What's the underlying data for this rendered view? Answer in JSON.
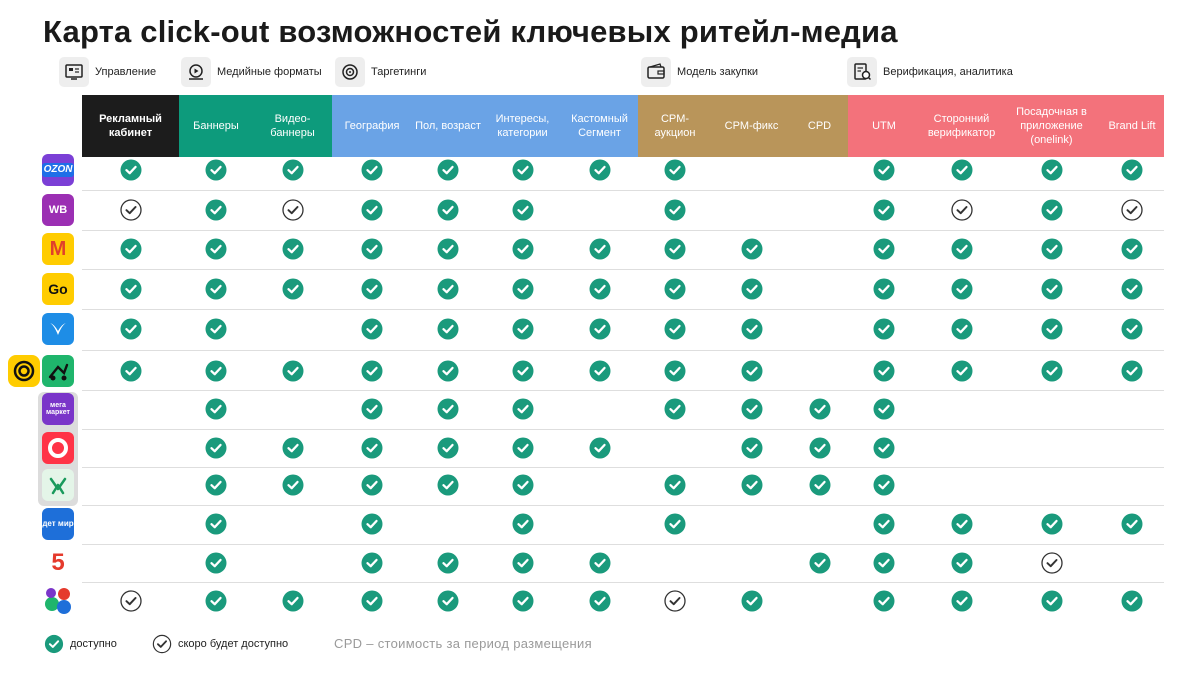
{
  "title": "Карта click-out возможностей ключевых ритейл-медиа",
  "groups": [
    {
      "label": "Управление",
      "icon": "dashboard-icon"
    },
    {
      "label": "Медийные форматы",
      "icon": "video-icon"
    },
    {
      "label": "Таргетинги",
      "icon": "target-icon"
    },
    {
      "label": "Модель закупки",
      "icon": "wallet-icon"
    },
    {
      "label": "Верификация, аналитика",
      "icon": "analytics-icon"
    }
  ],
  "colors": {
    "check": "#1a9a7c",
    "mgmt": "#1c1c1c",
    "media": "#0d9b7c",
    "targeting": "#6aa3e6",
    "purchase": "#b9955a",
    "verification": "#f3727b"
  },
  "columns": [
    {
      "label": "Рекламный кабинет",
      "group": "mgmt"
    },
    {
      "label": "Баннеры",
      "group": "media"
    },
    {
      "label": "Видео-баннеры",
      "group": "media"
    },
    {
      "label": "География",
      "group": "targeting"
    },
    {
      "label": "Пол, возраст",
      "group": "targeting"
    },
    {
      "label": "Интересы, категории",
      "group": "targeting"
    },
    {
      "label": "Кастомный Сегмент",
      "group": "targeting"
    },
    {
      "label": "CPM-аукцион",
      "group": "purchase"
    },
    {
      "label": "CPM-фикс",
      "group": "purchase"
    },
    {
      "label": "CPD",
      "group": "purchase"
    },
    {
      "label": "UTM",
      "group": "verification"
    },
    {
      "label": "Сторонний верификатор",
      "group": "verification"
    },
    {
      "label": "Посадочная в приложение (onelink)",
      "group": "verification"
    },
    {
      "label": "Brand Lift",
      "group": "verification"
    }
  ],
  "rows": [
    {
      "name": "ozon-logo",
      "text": "OZON",
      "marks": "a,a,a,a,a,a,a,a,-,-,a,a,a,a"
    },
    {
      "name": "wildberries-logo",
      "text": "WB",
      "marks": "s,a,s,a,a,a,-,a,-,-,a,s,a,s"
    },
    {
      "name": "yandex-market-logo",
      "text": "М",
      "marks": "a,a,a,a,a,a,a,a,a,-,a,a,a,a"
    },
    {
      "name": "yandex-go-logo",
      "text": "Go",
      "marks": "a,a,a,a,a,a,a,a,a,-,a,a,a,a"
    },
    {
      "name": "vkusvill-logo",
      "text": "",
      "marks": "a,a,-,a,a,a,a,a,a,-,a,a,a,a"
    },
    {
      "name": "samokat-logo",
      "text": "",
      "marks": "a,a,a,a,a,a,a,a,a,-,a,a,a,a"
    },
    {
      "name": "megamarket-logo",
      "text": "мега маркет",
      "marks": "-,a,-,a,a,a,-,a,a,a,a,-,-,-"
    },
    {
      "name": "avito-logo",
      "text": "",
      "marks": "-,a,a,a,a,a,a,-,a,a,a,-,-,-"
    },
    {
      "name": "sbermarket-logo",
      "text": "",
      "marks": "-,a,a,a,a,a,-,a,a,a,a,-,-,-"
    },
    {
      "name": "detmir-logo",
      "text": "дет мир",
      "marks": "-,a,-,a,-,a,-,a,-,-,a,a,a,a"
    },
    {
      "name": "pyaterochka-logo",
      "text": "5",
      "marks": "-,a,-,a,a,a,a,-,-,a,a,a,s,-"
    },
    {
      "name": "x5-logo",
      "text": "",
      "marks": "s,a,a,a,a,a,a,s,a,-,a,a,a,a"
    }
  ],
  "legend": {
    "available": "доступно",
    "soon": "скоро будет доступно",
    "cpd_note": "CPD – стоимость за период размещения"
  }
}
